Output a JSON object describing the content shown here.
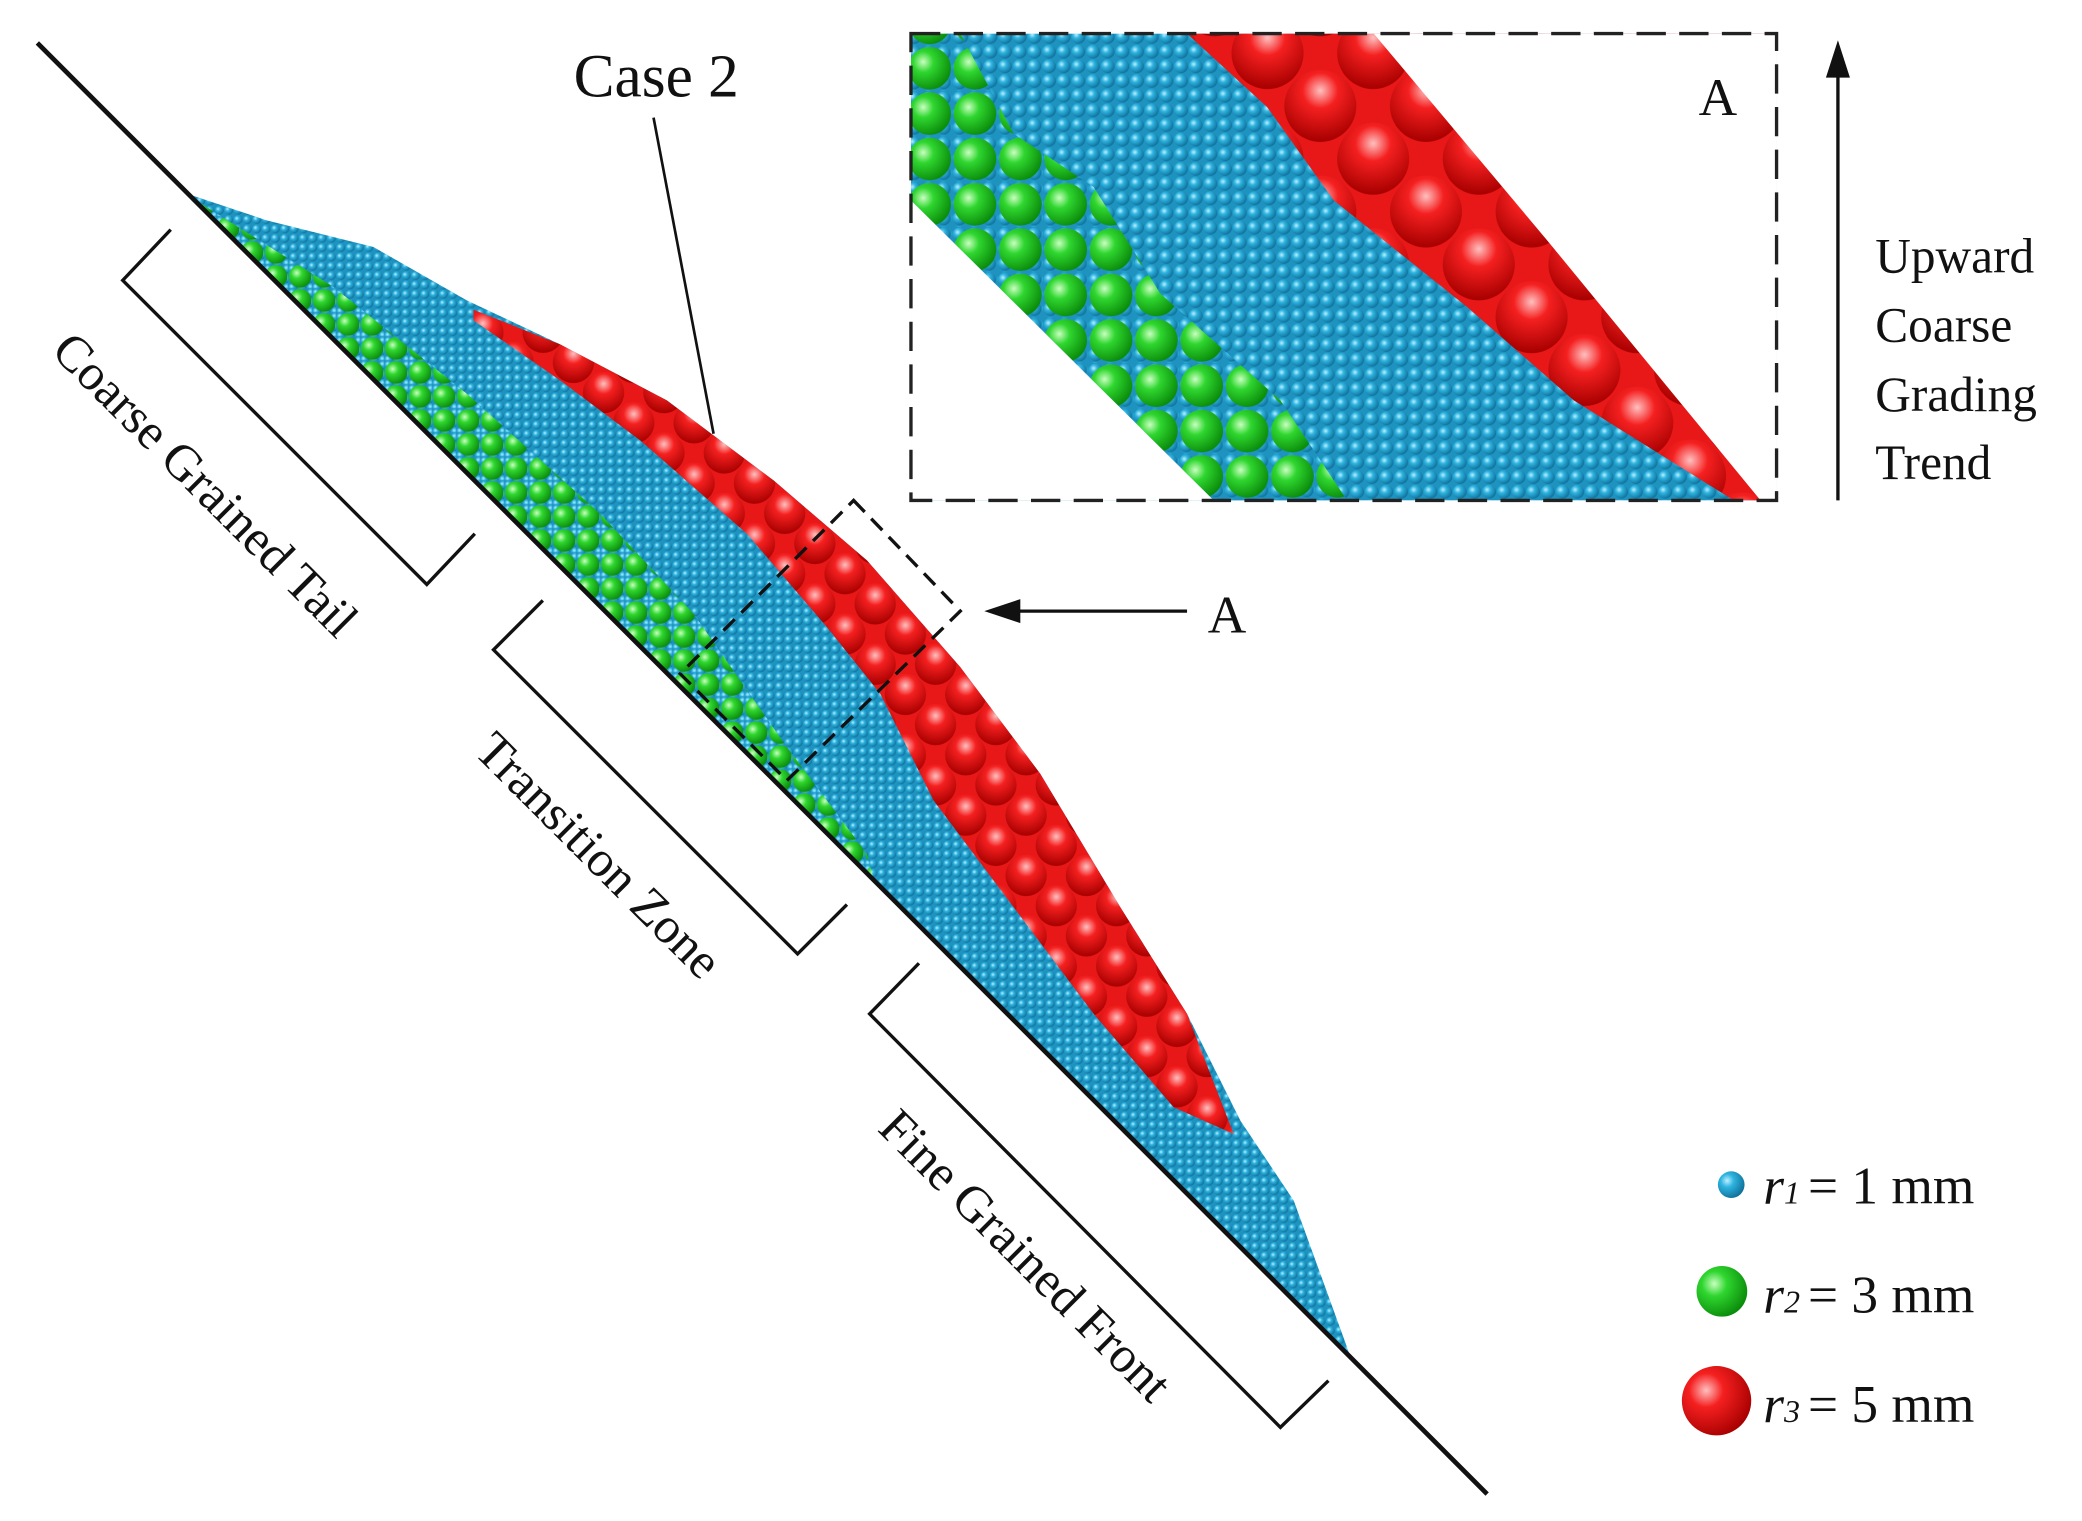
{
  "labels": {
    "case": "Case 2",
    "section_a": "A",
    "inset_a": "A",
    "trend": [
      "Upward",
      "Coarse",
      "Grading",
      "Trend"
    ],
    "zones": [
      "Coarse Grained Tail",
      "Transition Zone",
      "Fine Grained Front"
    ]
  },
  "legend": [
    {
      "symbol": "r",
      "subscript": "1",
      "text": "= 1 mm"
    },
    {
      "symbol": "r",
      "subscript": "2",
      "text": "= 3 mm"
    },
    {
      "symbol": "r",
      "subscript": "3",
      "text": "= 5 mm"
    }
  ]
}
